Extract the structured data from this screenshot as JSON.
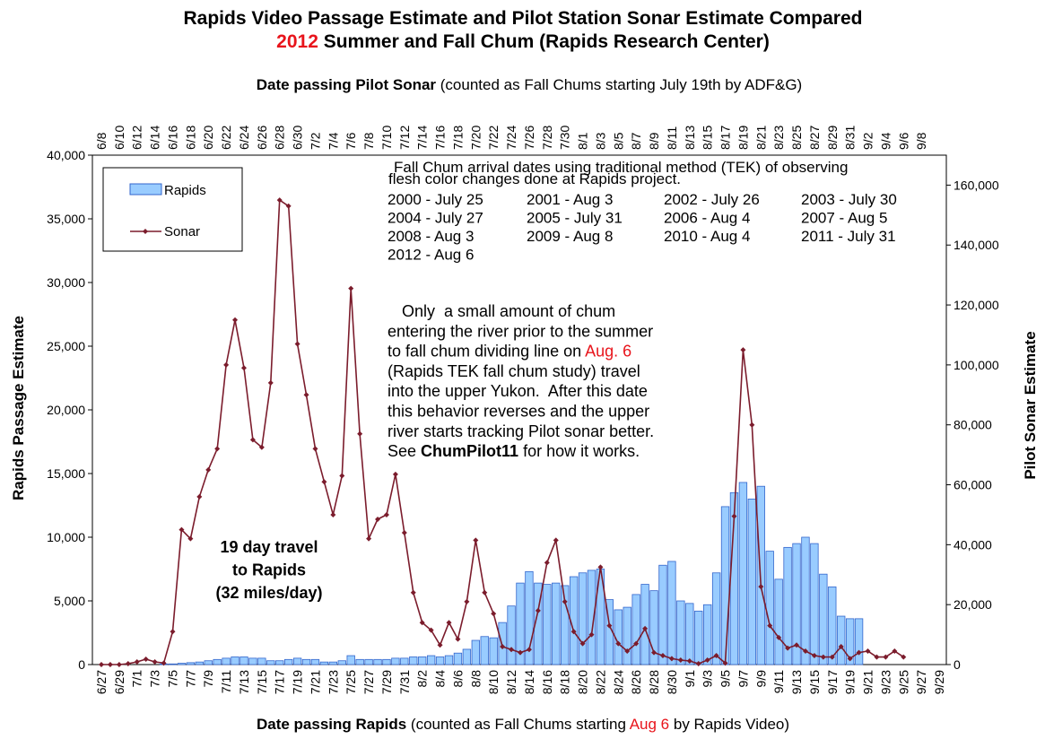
{
  "chart_data": {
    "type": "bar",
    "title": [
      [
        {
          "text": "Rapids Video Passage Estimate and Pilot Station Sonar Estimate Compared",
          "bold": true
        }
      ],
      [
        {
          "text": "2012",
          "bold": true,
          "color": "#e8141b"
        },
        {
          "text": " Summer and Fall Chum (Rapids Research Center)",
          "bold": true
        }
      ]
    ],
    "x_label": [
      {
        "text": "Date passing Rapids",
        "bold": true
      },
      {
        "text": " (counted as Fall Chums starting "
      },
      {
        "text": "Aug 6",
        "color": "#e8141b"
      },
      {
        "text": " by Rapids Video)"
      }
    ],
    "x2_label": [
      {
        "text": "Date passing Pilot Sonar",
        "bold": true
      },
      {
        "text": " (counted as Fall Chums starting July 19th by ADF&G)"
      }
    ],
    "y_label": "Rapids Passage Estimate",
    "y2_label": "Pilot Sonar Estimate",
    "categories": [
      "6/27",
      null,
      "6/29",
      null,
      "7/1",
      null,
      "7/3",
      null,
      "7/5",
      null,
      "7/7",
      null,
      "7/9",
      null,
      "7/11",
      null,
      "7/13",
      null,
      "7/15",
      null,
      "7/17",
      null,
      "7/19",
      null,
      "7/21",
      null,
      "7/23",
      null,
      "7/25",
      null,
      "7/27",
      null,
      "7/29",
      null,
      "7/31",
      null,
      "8/2",
      null,
      "8/4",
      null,
      "8/6",
      null,
      "8/8",
      null,
      "8/10",
      null,
      "8/12",
      null,
      "8/14",
      null,
      "8/16",
      null,
      "8/18",
      null,
      "8/20",
      null,
      "8/22",
      null,
      "8/24",
      null,
      "8/26",
      null,
      "8/28",
      null,
      "8/30",
      null,
      "9/1",
      null,
      "9/3",
      null,
      "9/5",
      null,
      "9/7",
      null,
      "9/9",
      null,
      "9/11",
      null,
      "9/13",
      null,
      "9/15",
      null,
      "9/17",
      null,
      "9/19",
      null,
      "9/21",
      null,
      "9/23",
      null,
      "9/25",
      null,
      "9/27",
      null,
      "9/29"
    ],
    "x2categories": [
      "6/8",
      null,
      "6/10",
      null,
      "6/12",
      null,
      "6/14",
      null,
      "6/16",
      null,
      "6/18",
      null,
      "6/20",
      null,
      "6/22",
      null,
      "6/24",
      null,
      "6/26",
      null,
      "6/28",
      null,
      "6/30",
      null,
      "7/2",
      null,
      "7/4",
      null,
      "7/6",
      null,
      "7/8",
      null,
      "7/10",
      null,
      "7/12",
      null,
      "7/14",
      null,
      "7/16",
      null,
      "7/18",
      null,
      "7/20",
      null,
      "7/22",
      null,
      "7/24",
      null,
      "7/26",
      null,
      "7/28",
      null,
      "7/30",
      null,
      "8/1",
      null,
      "8/3",
      null,
      "8/5",
      null,
      "8/7",
      null,
      "8/9",
      null,
      "8/11",
      null,
      "8/13",
      null,
      "8/15",
      null,
      "8/17",
      null,
      "8/19",
      null,
      "8/21",
      null,
      "8/23",
      null,
      "8/25",
      null,
      "8/27",
      null,
      "8/29",
      null,
      "8/31",
      null,
      "9/2",
      null,
      "9/4",
      null,
      "9/6",
      null,
      "9/8",
      null,
      null
    ],
    "series": [
      {
        "name": "Rapids",
        "type": "bar",
        "color": "#99ccff",
        "edge": "#3366cc",
        "values": [
          null,
          null,
          null,
          null,
          null,
          null,
          null,
          50,
          50,
          100,
          150,
          200,
          300,
          400,
          500,
          600,
          600,
          500,
          500,
          300,
          300,
          400,
          500,
          400,
          400,
          200,
          200,
          300,
          700,
          400,
          400,
          400,
          400,
          500,
          500,
          600,
          600,
          700,
          600,
          700,
          900,
          1200,
          1900,
          2200,
          2100,
          3300,
          4600,
          6400,
          7300,
          6400,
          6300,
          6400,
          6200,
          6900,
          7200,
          7400,
          7500,
          5100,
          4300,
          4500,
          5500,
          6300,
          5800,
          7800,
          8100,
          5000,
          4800,
          4200,
          4700,
          7200,
          12400,
          13500,
          14300,
          13000,
          14000,
          8900,
          6700,
          9200,
          9500,
          10000,
          9500,
          7100,
          6100,
          3800,
          3600,
          3600,
          null,
          null,
          null,
          null,
          null,
          null,
          null,
          null,
          null
        ]
      },
      {
        "name": "Sonar",
        "type": "line",
        "axis": "y2",
        "color": "#7b1c2c",
        "values": [
          0,
          0,
          0,
          300,
          900,
          1800,
          900,
          500,
          11000,
          45000,
          42000,
          56000,
          65000,
          72000,
          100000,
          115000,
          99000,
          75000,
          72500,
          94000,
          155000,
          153000,
          107000,
          90000,
          72000,
          61000,
          50000,
          63000,
          125500,
          77000,
          42000,
          48500,
          50000,
          63500,
          44000,
          24000,
          14000,
          11500,
          6500,
          14000,
          8500,
          21000,
          41500,
          24000,
          17000,
          6000,
          5000,
          4000,
          5000,
          18000,
          34000,
          41500,
          21000,
          11000,
          7000,
          10000,
          32500,
          13000,
          7000,
          4500,
          7000,
          12000,
          4000,
          3000,
          2000,
          1500,
          1200,
          300,
          1500,
          3000,
          500,
          49500,
          105000,
          80000,
          26000,
          13000,
          9000,
          5500,
          6500,
          4500,
          3000,
          2500,
          2500,
          6000,
          2000,
          4000,
          4500,
          2500,
          2500,
          4500,
          2500,
          null,
          null,
          null,
          null
        ]
      }
    ],
    "ylim": [
      0,
      40000
    ],
    "yticks": [
      0,
      {
        "value": 5000,
        "label": "5,000"
      },
      {
        "value": 10000,
        "label": "10,000"
      },
      {
        "value": 15000,
        "label": "15,000"
      },
      {
        "value": 20000,
        "label": "20,000"
      },
      {
        "value": 25000,
        "label": "25,000"
      },
      {
        "value": 30000,
        "label": "30,000"
      },
      {
        "value": 35000,
        "label": "35,000"
      },
      {
        "value": 40000,
        "label": "40,000"
      }
    ],
    "y2lim": [
      0,
      170000
    ],
    "y2ticks": [
      0,
      {
        "value": 20000,
        "label": "20,000"
      },
      {
        "value": 40000,
        "label": "40,000"
      },
      {
        "value": 60000,
        "label": "60,000"
      },
      {
        "value": 80000,
        "label": "80,000"
      },
      {
        "value": 100000,
        "label": "100,000"
      },
      {
        "value": 120000,
        "label": "120,000"
      },
      {
        "value": 140000,
        "label": "140,000"
      },
      {
        "value": 160000,
        "label": "160,000"
      }
    ],
    "grid": false,
    "legend": "upper left",
    "tek_heading": [
      "Fall Chum arrival dates using traditional method (TEK) of observing",
      "flesh color changes done at Rapids project."
    ],
    "tek_entries": [
      "2000 - July 25",
      "2001 - Aug 3",
      "2002 - July 26",
      "2003 - July 30",
      "2004 - July 27",
      "2005 - July 31",
      "2006 - Aug 4",
      "2007 - Aug 5",
      "2008 - Aug 3",
      "2009 - Aug 8",
      "2010 - Aug 4",
      "2011 - July 31",
      "2012 - Aug 6"
    ],
    "paragraph": [
      [
        {
          "text": "Only  a small amount of chum"
        }
      ],
      [
        {
          "text": "entering the river prior to the summer"
        }
      ],
      [
        {
          "text": "to fall chum dividing line on "
        },
        {
          "text": "Aug. 6",
          "color": "#e8141b"
        }
      ],
      [
        {
          "text": "(Rapids TEK fall chum study) travel"
        }
      ],
      [
        {
          "text": "into the upper Yukon.  After this date"
        }
      ],
      [
        {
          "text": "this behavior reverses and the upper"
        }
      ],
      [
        {
          "text": "river starts tracking Pilot sonar better."
        }
      ],
      [
        {
          "text": "See "
        },
        {
          "text": "ChumPilot11",
          "bold": true
        },
        {
          "text": " for how it works."
        }
      ]
    ],
    "travel_note": [
      "19 day travel",
      "to Rapids",
      "(32 miles/day)"
    ]
  }
}
